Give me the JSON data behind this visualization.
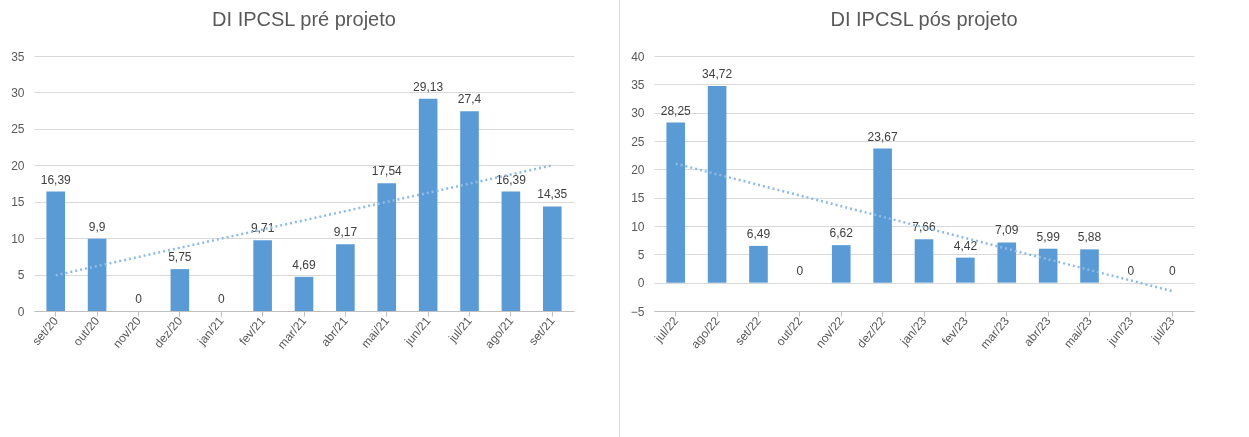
{
  "chart_data": [
    {
      "type": "bar",
      "title": "DI IPCSL pré projeto",
      "categories": [
        "set/20",
        "out/20",
        "nov/20",
        "dez/20",
        "jan/21",
        "fev/21",
        "mar/21",
        "abr/21",
        "mai/21",
        "jun/21",
        "jul/21",
        "ago/21",
        "set/21"
      ],
      "series": [
        {
          "color": "#5b9bd5",
          "values": [
            16.39,
            9.9,
            0,
            5.75,
            0,
            9.71,
            4.69,
            9.17,
            17.54,
            29.13,
            27.4,
            16.39,
            14.35
          ],
          "value_labels": [
            "16,39",
            "9,9",
            "0",
            "5,75",
            "0",
            "9,71",
            "4,69",
            "9,17",
            "17,54",
            "29,13",
            "27,4",
            "16,39",
            "14,35"
          ]
        },
        {
          "type": "line",
          "color": "#8fbbe6",
          "line_style": "dotted",
          "x": [
            "set/20",
            "set/21"
          ],
          "values": [
            4.9,
            20.0
          ]
        }
      ],
      "ylim": [
        0,
        35
      ],
      "yticks": [
        0,
        5,
        10,
        15,
        20,
        25,
        30,
        35
      ],
      "grid": "y"
    },
    {
      "type": "bar",
      "title": "DI IPCSL pós projeto",
      "categories": [
        "jul/22",
        "ago/22",
        "set/22",
        "out/22",
        "nov/22",
        "dez/22",
        "jan/23",
        "fev/23",
        "mar/23",
        "abr/23",
        "mai/23",
        "jun/23",
        "jul/23"
      ],
      "series": [
        {
          "color": "#5b9bd5",
          "values": [
            28.25,
            34.72,
            6.49,
            0,
            6.62,
            23.67,
            7.66,
            4.42,
            7.09,
            5.99,
            5.88,
            0,
            0
          ],
          "value_labels": [
            "28,25",
            "34,72",
            "6,49",
            "0",
            "6,62",
            "23,67",
            "7,66",
            "4,42",
            "7,09",
            "5,99",
            "5,88",
            "0",
            "0"
          ]
        },
        {
          "type": "line",
          "color": "#8fbbe6",
          "line_style": "dotted",
          "x": [
            "jul/22",
            "jul/23"
          ],
          "values": [
            21.0,
            -1.5
          ]
        }
      ],
      "ylim": [
        -5,
        40
      ],
      "yticks": [
        -5,
        0,
        5,
        10,
        15,
        20,
        25,
        30,
        35,
        40
      ],
      "grid": "y"
    }
  ]
}
